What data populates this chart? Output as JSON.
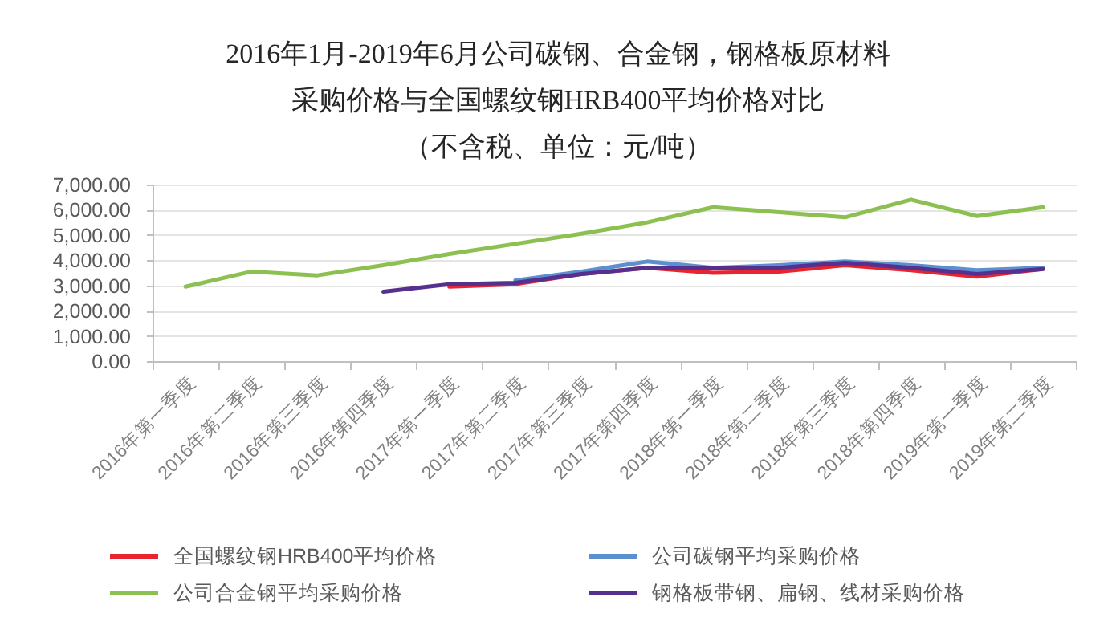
{
  "chart_data": {
    "type": "line",
    "title": "2016年1月-2019年6月公司碳钢、合金钢，钢格板原材料采购价格与全国螺纹钢HRB400平均价格对比",
    "subtitle": "（不含税、单位：元/吨）",
    "categories": [
      "2016年第一季度",
      "2016年第二季度",
      "2016年第三季度",
      "2016年第四季度",
      "2017年第一季度",
      "2017年第二季度",
      "2017年第三季度",
      "2017年第四季度",
      "2018年第一季度",
      "2018年第二季度",
      "2018年第三季度",
      "2018年第四季度",
      "2019年第一季度",
      "2019年第二季度"
    ],
    "series": [
      {
        "name": "全国螺纹钢HRB400平均价格",
        "color": "#e8252f",
        "values": [
          null,
          null,
          null,
          null,
          2950,
          3050,
          3450,
          3700,
          3500,
          3550,
          3800,
          3600,
          3350,
          3650
        ]
      },
      {
        "name": "公司碳钢平均采购价格",
        "color": "#5b8fd0",
        "values": [
          null,
          null,
          null,
          null,
          null,
          3200,
          3550,
          3950,
          3700,
          3800,
          3950,
          3800,
          3600,
          3700
        ]
      },
      {
        "name": "公司合金钢平均采购价格",
        "color": "#8cc152",
        "values": [
          2950,
          3550,
          3400,
          3800,
          4250,
          4650,
          5050,
          5500,
          6100,
          5900,
          5700,
          6400,
          5750,
          6100
        ]
      },
      {
        "name": "钢格板带钢、扁钢、线材采购价格",
        "color": "#55308f",
        "values": [
          null,
          null,
          null,
          2750,
          3050,
          3100,
          3450,
          3700,
          3700,
          3700,
          3900,
          3700,
          3450,
          3650
        ]
      }
    ],
    "ylim": [
      0,
      7000
    ],
    "yticks": [
      {
        "value": 0,
        "label": "0.00"
      },
      {
        "value": 1000,
        "label": "1,000.00"
      },
      {
        "value": 2000,
        "label": "2,000.00"
      },
      {
        "value": 3000,
        "label": "3,000.00"
      },
      {
        "value": 4000,
        "label": "4,000.00"
      },
      {
        "value": 5000,
        "label": "5,000.00"
      },
      {
        "value": 6000,
        "label": "6,000.00"
      },
      {
        "value": 7000,
        "label": "7,000.00"
      }
    ],
    "grid": "y",
    "legend": "bottom"
  }
}
